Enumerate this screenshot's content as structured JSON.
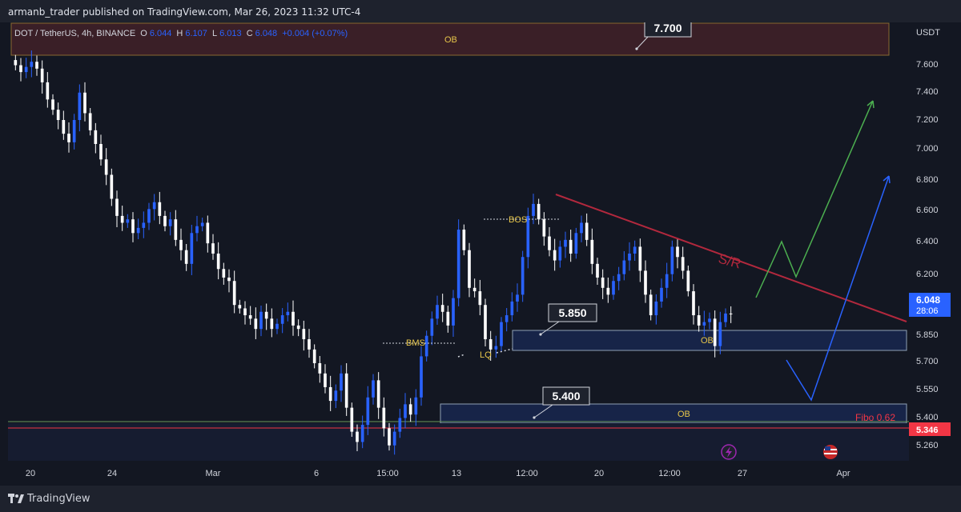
{
  "header": {
    "publisher": "armanb_trader published on TradingView.com, Mar 26, 2023 11:32 UTC-4"
  },
  "legend": {
    "symbol": "DOT / TetherUS, 4h, BINANCE",
    "o_label": "O",
    "o_value": "6.044",
    "h_label": "H",
    "h_value": "6.107",
    "l_label": "L",
    "l_value": "6.013",
    "c_label": "C",
    "c_value": "6.048",
    "change": "+0.004 (+0.07%)"
  },
  "price_axis": {
    "currency": "USDT",
    "ticks": [
      "7.600",
      "7.400",
      "7.200",
      "7.000",
      "6.800",
      "6.600",
      "6.400",
      "6.200",
      "5.850",
      "5.700",
      "5.550",
      "5.400",
      "5.260"
    ],
    "current_price": "6.048",
    "countdown": "28:06",
    "fibo_price": "5.346"
  },
  "time_axis": {
    "ticks": [
      "20",
      "24",
      "Mar",
      "6",
      "15:00",
      "13",
      "12:00",
      "20",
      "12:00",
      "27",
      "Apr"
    ]
  },
  "annotations": {
    "ob_top": "OB",
    "ob_mid": "OB",
    "ob_low": "OB",
    "bos": "BOS",
    "bms": "BMS",
    "lq": "LQ",
    "sr": "S/R",
    "fibo": "Fibo 0.62",
    "callout_top": "7.700",
    "callout_mid": "5.850",
    "callout_low": "5.400"
  },
  "footer": {
    "brand": "TradingView"
  },
  "colors": {
    "bull": "#2962ff",
    "bear": "#ffffff",
    "background": "#131722",
    "fibo": "#f23645",
    "sr_line": "#b2283d",
    "green_path": "#4caf50",
    "blue_path": "#2962ff"
  },
  "chart_data": {
    "type": "candlestick",
    "title": "DOT / TetherUS, 4h, BINANCE",
    "ylabel": "USDT",
    "ylim": [
      5.19,
      7.75
    ],
    "x_ticks": [
      "20",
      "24",
      "Mar",
      "6",
      "15:00",
      "13",
      "12:00",
      "20",
      "12:00",
      "27",
      "Apr"
    ],
    "series_close_approx": [
      7.5,
      7.46,
      7.49,
      7.52,
      7.48,
      7.4,
      7.3,
      7.24,
      7.18,
      7.1,
      7.05,
      7.18,
      7.34,
      7.22,
      7.12,
      7.04,
      6.95,
      6.86,
      6.72,
      6.62,
      6.58,
      6.6,
      6.52,
      6.55,
      6.58,
      6.66,
      6.7,
      6.62,
      6.56,
      6.6,
      6.48,
      6.42,
      6.34,
      6.52,
      6.56,
      6.58,
      6.46,
      6.4,
      6.31,
      6.26,
      6.24,
      6.1,
      6.08,
      6.04,
      6.02,
      5.96,
      6.06,
      6.02,
      5.96,
      5.99,
      6.04,
      6.06,
      5.98,
      5.96,
      5.9,
      5.84,
      5.76,
      5.7,
      5.62,
      5.54,
      5.6,
      5.7,
      5.5,
      5.36,
      5.3,
      5.4,
      5.56,
      5.66,
      5.5,
      5.38,
      5.28,
      5.36,
      5.44,
      5.52,
      5.46,
      5.56,
      5.8,
      5.92,
      6.02,
      6.1,
      6.06,
      5.98,
      6.14,
      6.54,
      6.42,
      6.2,
      6.18,
      6.1,
      5.9,
      5.84,
      5.86,
      6.0,
      6.04,
      6.12,
      6.16,
      6.38,
      6.62,
      6.69,
      6.6,
      6.5,
      6.42,
      6.36,
      6.44,
      6.48,
      6.4,
      6.52,
      6.58,
      6.48,
      6.34,
      6.26,
      6.2,
      6.16,
      6.24,
      6.28,
      6.36,
      6.4,
      6.44,
      6.3,
      6.16,
      6.04,
      6.12,
      6.2,
      6.28,
      6.44,
      6.38,
      6.3,
      6.18,
      6.04,
      5.98,
      6.0,
      6.02,
      5.86,
      6.0,
      6.05,
      6.048
    ],
    "levels": [
      {
        "name": "Fibo 0.62",
        "value": 5.346
      },
      {
        "name": "OB",
        "from": 7.66,
        "to": 7.88
      },
      {
        "name": "OB",
        "from": 5.78,
        "to": 5.89
      },
      {
        "name": "OB",
        "from": 5.37,
        "to": 5.47
      }
    ],
    "callouts": [
      7.7,
      5.85,
      5.4
    ]
  }
}
